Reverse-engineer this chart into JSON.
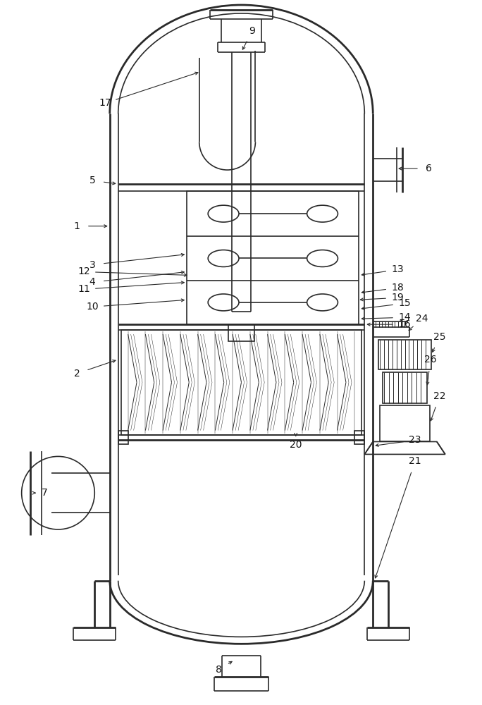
{
  "bg_color": "#ffffff",
  "line_color": "#2a2a2a",
  "lw_thick": 2.0,
  "lw_med": 1.2,
  "lw_thin": 0.7,
  "fig_width": 6.84,
  "fig_height": 10.0
}
